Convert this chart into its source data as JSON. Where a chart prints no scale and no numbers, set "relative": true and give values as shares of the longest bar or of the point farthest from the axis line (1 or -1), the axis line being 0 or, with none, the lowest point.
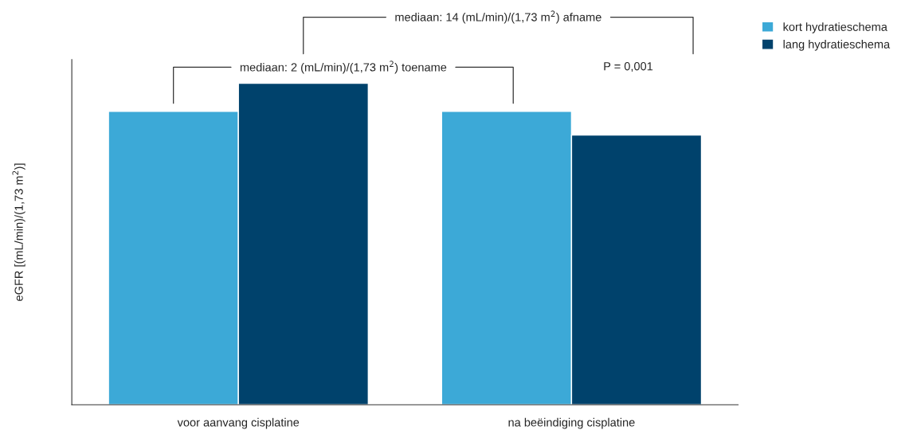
{
  "chart_data": {
    "type": "bar",
    "relative": true,
    "ylabel": "eGFR [(mL/min)/(1,73 m$^{2}$)]",
    "categories": [
      "voor aanvang cisplatine",
      "na beëindiging cisplatine"
    ],
    "series": [
      {
        "name": "kort hydratieschema",
        "color": "#3ca9d7",
        "values": [
          0.913,
          0.913
        ]
      },
      {
        "name": "lang hydratieschema",
        "color": "#00426c",
        "values": [
          1,
          0.839
        ]
      }
    ],
    "annotations": [
      "mediaan: 2 (mL/min)/(1,73 m$^{2}$) toename",
      "mediaan: 14 (mL/min)/(1,73 m$^{2}$) afname",
      "P = 0,001"
    ],
    "legend": "top right",
    "grid": false
  }
}
